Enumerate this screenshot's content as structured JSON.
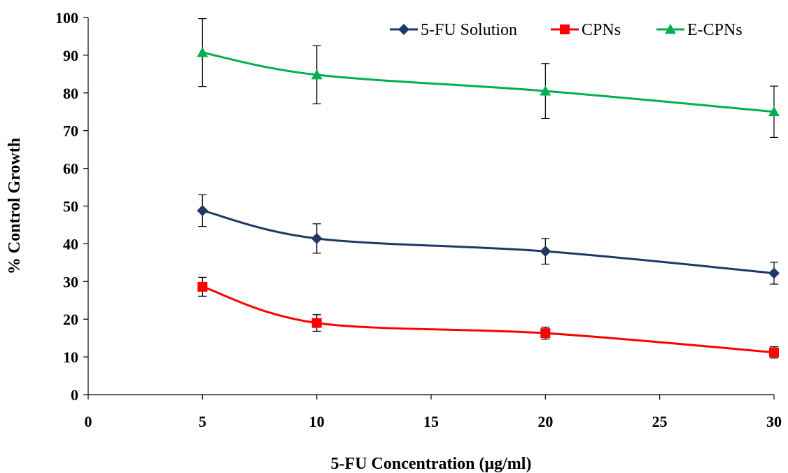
{
  "chart_data": {
    "type": "line",
    "xlabel": "5-FU Concentration  (μg/ml)",
    "ylabel": "% Control  Growth",
    "xlim": [
      0,
      30
    ],
    "ylim": [
      0,
      100
    ],
    "x_ticks": [
      "0",
      "5",
      "10",
      "15",
      "20",
      "25",
      "30"
    ],
    "y_ticks": [
      "0",
      "10",
      "20",
      "30",
      "40",
      "50",
      "60",
      "70",
      "80",
      "90",
      "100"
    ],
    "grid": false,
    "legend_position": "top-right",
    "x": [
      5,
      10,
      20,
      30
    ],
    "series": [
      {
        "name": "5-FU Solution",
        "color": "#1F3864",
        "marker": "diamond",
        "values": [
          48.8,
          41.4,
          38.0,
          32.2
        ],
        "errors": [
          4.2,
          3.9,
          3.4,
          2.9
        ]
      },
      {
        "name": "CPNs",
        "color": "#FF0000",
        "marker": "square",
        "values": [
          28.6,
          19.0,
          16.3,
          11.2
        ],
        "errors": [
          2.5,
          2.2,
          1.6,
          1.5
        ]
      },
      {
        "name": "E-CPNs",
        "color": "#00B050",
        "marker": "triangle",
        "values": [
          90.7,
          84.8,
          80.5,
          75.0
        ],
        "errors": [
          9.0,
          7.7,
          7.3,
          6.8
        ]
      }
    ]
  }
}
